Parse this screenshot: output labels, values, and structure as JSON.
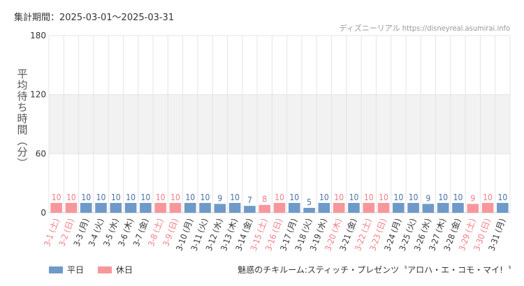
{
  "header": {
    "period_label": "集計期間：2025-03-01〜2025-03-31",
    "credit": "ディズニーリアル https://disneyreal.asumirai.info"
  },
  "footer": {
    "attraction": "魅惑のチキルーム:スティッチ・プレゼンツ〝アロハ・エ・コモ・マイ!〝"
  },
  "colors": {
    "weekday": "#6e9ac9",
    "holiday": "#f7979b",
    "weekday_text": "#4a6fa5",
    "holiday_text": "#f27b82",
    "band": "#f2f2f2",
    "grid": "#e4e4e4"
  },
  "chart_data": {
    "type": "bar",
    "ylabel": "平均待ち時間（分）",
    "ylim": [
      0,
      180
    ],
    "yticks": [
      0,
      60,
      120,
      180
    ],
    "legend": [
      {
        "name": "平日",
        "color": "#6e9ac9"
      },
      {
        "name": "休日",
        "color": "#f7979b"
      }
    ],
    "legend_position": "bottom-left",
    "categories": [
      "3-1 (土)",
      "3-2 (日)",
      "3-3 (月)",
      "3-4 (火)",
      "3-5 (水)",
      "3-6 (木)",
      "3-7 (金)",
      "3-8 (土)",
      "3-9 (日)",
      "3-10 (月)",
      "3-11 (火)",
      "3-12 (水)",
      "3-13 (木)",
      "3-14 (金)",
      "3-15 (土)",
      "3-16 (日)",
      "3-17 (月)",
      "3-18 (火)",
      "3-19 (水)",
      "3-20 (木)",
      "3-21 (金)",
      "3-22 (土)",
      "3-23 (日)",
      "3-24 (月)",
      "3-25 (火)",
      "3-26 (水)",
      "3-27 (木)",
      "3-28 (金)",
      "3-29 (土)",
      "3-30 (日)",
      "3-31 (月)"
    ],
    "values": [
      10,
      10,
      10,
      10,
      10,
      10,
      10,
      10,
      10,
      10,
      10,
      9,
      10,
      7,
      8,
      10,
      10,
      5,
      10,
      10,
      10,
      10,
      10,
      10,
      10,
      9,
      10,
      10,
      9,
      10,
      10
    ],
    "holiday": [
      true,
      true,
      false,
      false,
      false,
      false,
      false,
      true,
      true,
      false,
      false,
      false,
      false,
      false,
      true,
      true,
      false,
      false,
      false,
      true,
      false,
      true,
      true,
      false,
      false,
      false,
      false,
      false,
      true,
      true,
      false
    ]
  }
}
